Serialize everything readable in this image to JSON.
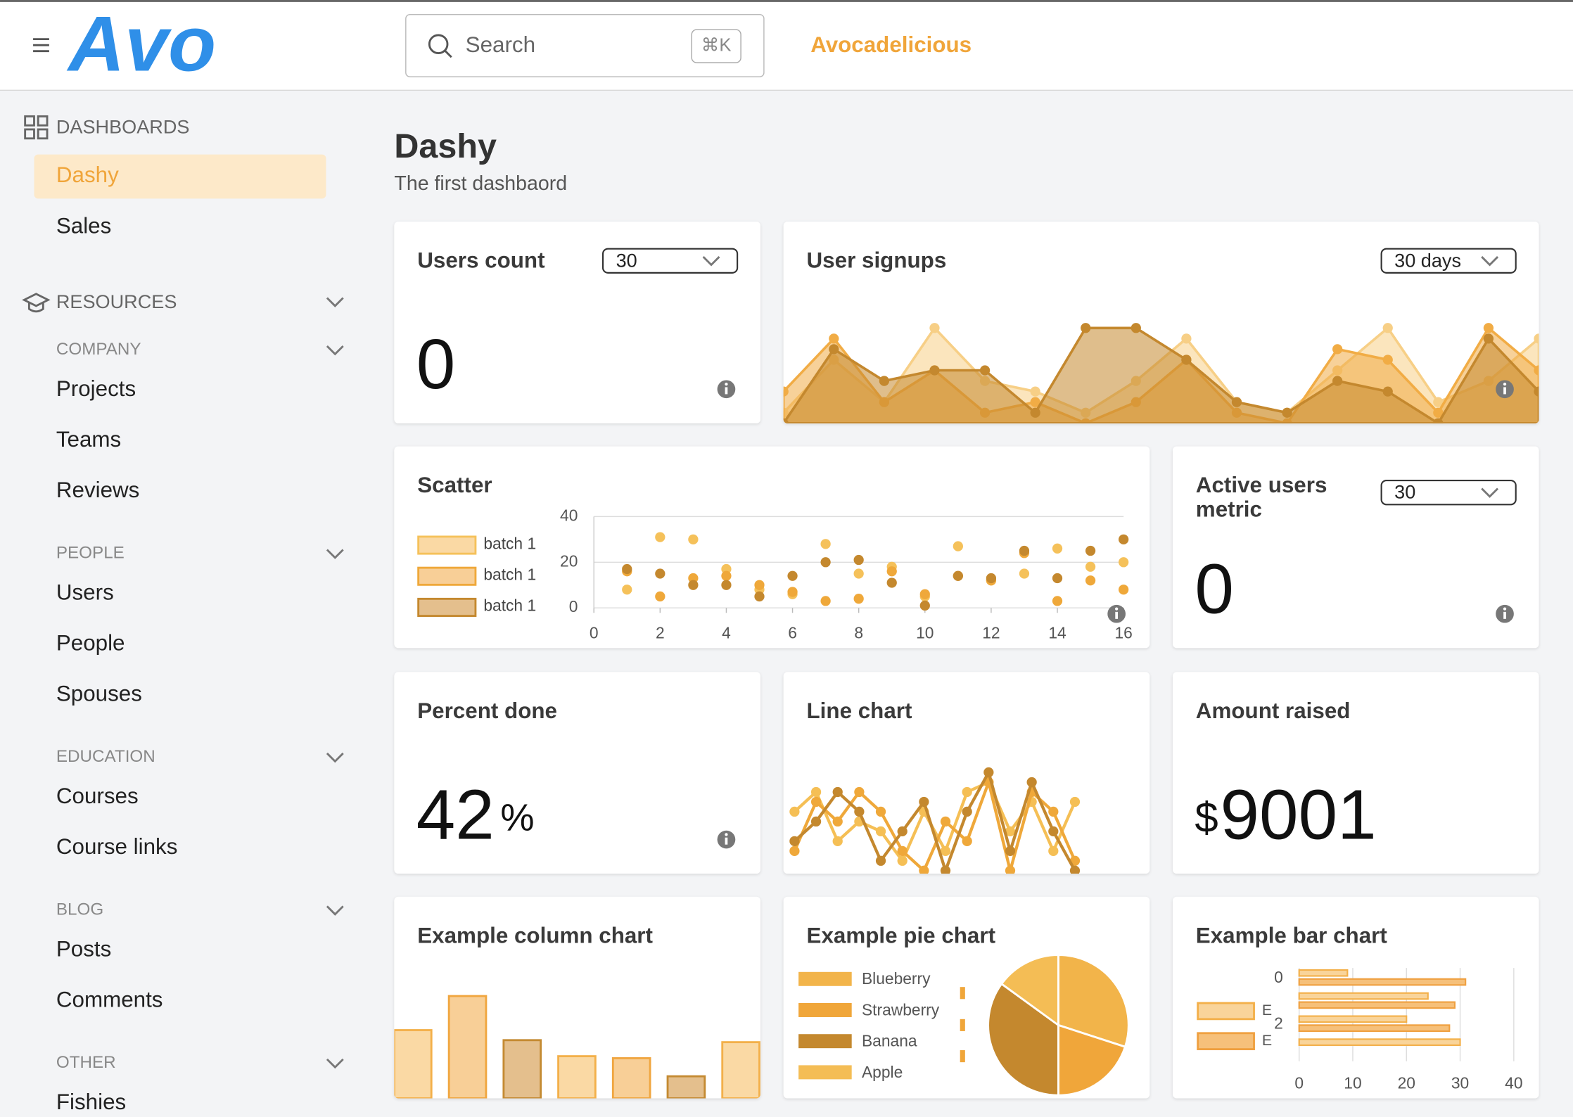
{
  "header": {
    "logo": "Avo",
    "search_placeholder": "Search",
    "shortcut": "⌘K",
    "app_name": "Avocadelicious"
  },
  "sidebar": {
    "dashboards_title": "DASHBOARDS",
    "dashboards": [
      "Dashy",
      "Sales"
    ],
    "active": 0,
    "resources_title": "RESOURCES",
    "groups": [
      {
        "title": "COMPANY",
        "items": [
          "Projects",
          "Teams",
          "Reviews"
        ]
      },
      {
        "title": "PEOPLE",
        "items": [
          "Users",
          "People",
          "Spouses"
        ]
      },
      {
        "title": "EDUCATION",
        "items": [
          "Courses",
          "Course links"
        ]
      },
      {
        "title": "BLOG",
        "items": [
          "Posts",
          "Comments"
        ]
      },
      {
        "title": "OTHER",
        "items": [
          "Fishies"
        ]
      }
    ]
  },
  "page": {
    "title": "Dashy",
    "subtitle": "The first dashbaord"
  },
  "cards": [
    {
      "title": "Users count",
      "select": "30",
      "value": 0
    },
    {
      "title": "User signups",
      "select": "30 days",
      "type": "area",
      "series": [
        {
          "color": "#f7cf86",
          "values": [
            1,
            6,
            2,
            9,
            4,
            3,
            1,
            4,
            8,
            2,
            1,
            5,
            9,
            2,
            4,
            8
          ]
        },
        {
          "color": "#f1ac45",
          "values": [
            3,
            8,
            2,
            5,
            1,
            2,
            0,
            2,
            6,
            1,
            0,
            7,
            6,
            1,
            9,
            5
          ]
        },
        {
          "color": "#c4882e",
          "values": [
            0,
            7,
            4,
            5,
            5,
            1,
            9,
            9,
            6,
            2,
            1,
            4,
            3,
            0,
            8,
            3
          ]
        }
      ]
    },
    {
      "title": "Scatter",
      "type": "scatter",
      "xlim": [
        0,
        16
      ],
      "xticks": [
        0,
        2,
        4,
        6,
        8,
        10,
        12,
        14,
        16
      ],
      "ylim": [
        0,
        40
      ],
      "yticks": [
        0,
        20,
        40
      ],
      "series": [
        {
          "name": "batch 1",
          "color": "#f5c15a",
          "x": [
            1,
            2,
            3,
            4,
            5,
            6,
            7,
            8,
            9,
            10,
            11,
            12,
            13,
            14,
            15,
            16
          ],
          "values": [
            8,
            31,
            30,
            17,
            8,
            6,
            28,
            15,
            18,
            5,
            27,
            12,
            15,
            26,
            18,
            20
          ]
        },
        {
          "name": "batch 1",
          "color": "#efa83a",
          "x": [
            1,
            2,
            3,
            4,
            5,
            6,
            7,
            8,
            9,
            10,
            11,
            12,
            13,
            14,
            15,
            16
          ],
          "values": [
            16,
            5,
            13,
            14,
            10,
            7,
            3,
            4,
            16,
            6,
            14,
            12,
            24,
            3,
            12,
            8
          ]
        },
        {
          "name": "batch 1",
          "color": "#c4882e",
          "x": [
            1,
            2,
            3,
            4,
            5,
            6,
            7,
            8,
            9,
            10,
            11,
            12,
            13,
            14,
            15,
            16
          ],
          "values": [
            17,
            15,
            10,
            10,
            5,
            14,
            20,
            21,
            11,
            1,
            14,
            13,
            25,
            13,
            25,
            30
          ]
        }
      ]
    },
    {
      "title": "Active users metric",
      "select": "30",
      "value": 0
    },
    {
      "title": "Percent done",
      "value": 42,
      "unit": "%"
    },
    {
      "title": "Line chart",
      "type": "line",
      "series": [
        {
          "color": "#f5bf55",
          "values": [
            6,
            8,
            3,
            5,
            4,
            1,
            6,
            2,
            8,
            9,
            4,
            7,
            2,
            7
          ]
        },
        {
          "color": "#efa83a",
          "values": [
            2,
            7,
            5,
            8,
            6,
            2,
            0,
            5,
            3,
            9,
            0,
            8,
            6,
            1
          ]
        },
        {
          "color": "#c4882e",
          "values": [
            3,
            5,
            8,
            6,
            1,
            4,
            7,
            0,
            6,
            10,
            2,
            9,
            4,
            0
          ]
        }
      ]
    },
    {
      "title": "Amount raised",
      "prefix": "$",
      "value": 9001
    },
    {
      "title": "Example column chart",
      "type": "column",
      "values": [
        68,
        102,
        58,
        42,
        40,
        22,
        56
      ],
      "colors": [
        "#fad9a4",
        "#f8cf97",
        "#e4bf8d",
        "#fad9a4",
        "#f8cf97",
        "#e4bf8d",
        "#fad9a4"
      ]
    },
    {
      "title": "Example pie chart",
      "type": "pie",
      "categories": [
        "Blueberry",
        "Strawberry",
        "Banana",
        "Apple"
      ],
      "values": [
        30,
        20,
        35,
        15
      ],
      "colors": [
        "#f2b44a",
        "#f0a63a",
        "#c4882e",
        "#f4bd55"
      ]
    },
    {
      "title": "Example bar chart",
      "type": "hbar",
      "categories": [
        0,
        null,
        2,
        null
      ],
      "xlim": [
        0,
        40
      ],
      "xticks": [
        0,
        10,
        20,
        30,
        40
      ],
      "series": [
        {
          "name": "E",
          "color": "#f9d49a",
          "values": [
            9,
            24,
            20,
            30
          ]
        },
        {
          "name": "E",
          "color": "#f6c07a",
          "values": [
            31,
            29,
            28,
            null
          ]
        }
      ]
    }
  ]
}
